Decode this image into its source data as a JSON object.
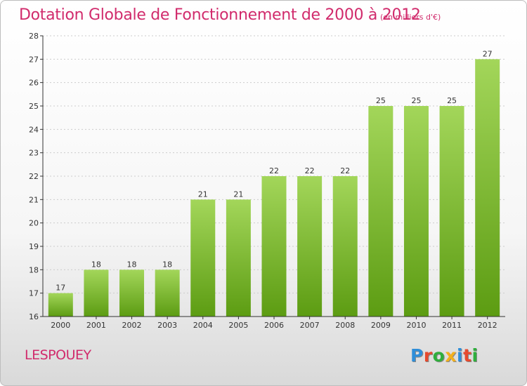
{
  "header": {
    "title": "Dotation Globale de Fonctionnement de 2000 à 2012",
    "subtitle": "(en milliers d'€)"
  },
  "footer": {
    "commune": "LESPOUEY",
    "logo_letters": [
      "P",
      "r",
      "o",
      "x",
      "i",
      "t",
      "i"
    ],
    "logo_colors": [
      "#2f8ed8",
      "#e64a2e",
      "#2fae3c",
      "#f2b01e",
      "#2f8ed8",
      "#e64a2e",
      "#2fae3c"
    ]
  },
  "colors": {
    "bar_top": "#a3d65a",
    "bar_bottom": "#5c9c12",
    "axis": "#333333",
    "grid": "#cccccc"
  },
  "chart_data": {
    "type": "bar",
    "categories": [
      "2000",
      "2001",
      "2002",
      "2003",
      "2004",
      "2005",
      "2006",
      "2007",
      "2008",
      "2009",
      "2010",
      "2011",
      "2012"
    ],
    "values": [
      17,
      18,
      18,
      18,
      21,
      21,
      22,
      22,
      22,
      25,
      25,
      25,
      27
    ],
    "ylim": [
      16,
      28
    ],
    "yticks": [
      16,
      17,
      18,
      19,
      20,
      21,
      22,
      23,
      24,
      25,
      26,
      27,
      28
    ],
    "grid": true
  }
}
